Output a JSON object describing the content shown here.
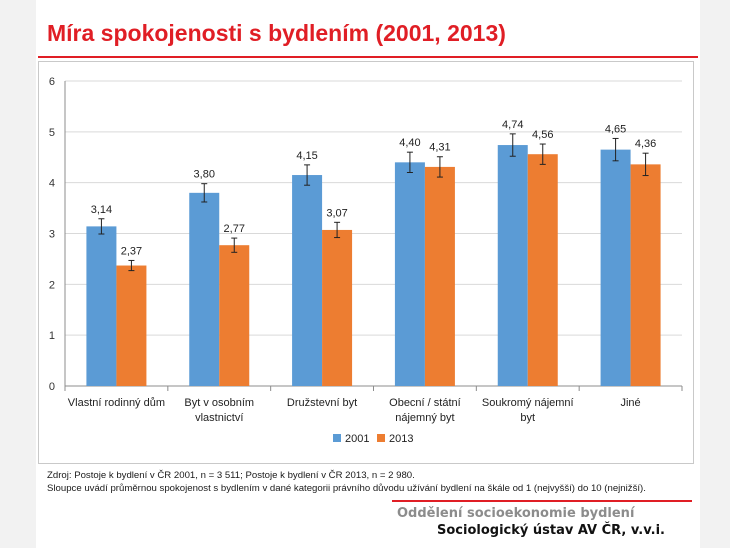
{
  "title": "Míra spokojenosti s bydlením (2001, 2013)",
  "source_lines": [
    "Zdroj: Postoje k bydlení v ČR 2001, n = 3 511; Postoje k bydlení v ČR 2013, n = 2 980.",
    "Sloupce uvádí průměrnou spokojenost s bydlením v dané kategorii právního důvodu užívání bydlení na škále od 1 (nejvyšší) do 10 (nejnižší)."
  ],
  "footer": {
    "department": "Oddělení socioekonomie bydlení",
    "institute": "Sociologický ústav AV ČR, v.v.i."
  },
  "colors": {
    "accent": "#e01e25",
    "series_2001": "#5b9bd5",
    "series_2013": "#ed7d31"
  },
  "chart_data": {
    "type": "bar",
    "title": "",
    "xlabel": "",
    "ylabel": "",
    "ylim": [
      0,
      6
    ],
    "yticks": [
      "0",
      "1",
      "2",
      "3",
      "4",
      "5",
      "6"
    ],
    "grid": true,
    "legend_position": "bottom",
    "categories": [
      [
        "Vlastní rodinný dům"
      ],
      [
        "Byt v osobním",
        "vlastnictví"
      ],
      [
        "Družstevní byt"
      ],
      [
        "Obecní / státní",
        "nájemný byt"
      ],
      [
        "Soukromý nájemní",
        "byt"
      ],
      [
        "Jiné"
      ]
    ],
    "series": [
      {
        "name": "2001",
        "color": "#5b9bd5",
        "values": [
          3.14,
          3.8,
          4.15,
          4.4,
          4.74,
          4.65
        ],
        "labels": [
          "3,14",
          "3,80",
          "4,15",
          "4,40",
          "4,74",
          "4,65"
        ],
        "error": [
          0.15,
          0.18,
          0.2,
          0.2,
          0.22,
          0.22
        ]
      },
      {
        "name": "2013",
        "color": "#ed7d31",
        "values": [
          2.37,
          2.77,
          3.07,
          4.31,
          4.56,
          4.36
        ],
        "labels": [
          "2,37",
          "2,77",
          "3,07",
          "4,31",
          "4,56",
          "4,36"
        ],
        "error": [
          0.1,
          0.14,
          0.15,
          0.2,
          0.2,
          0.22
        ]
      }
    ]
  }
}
